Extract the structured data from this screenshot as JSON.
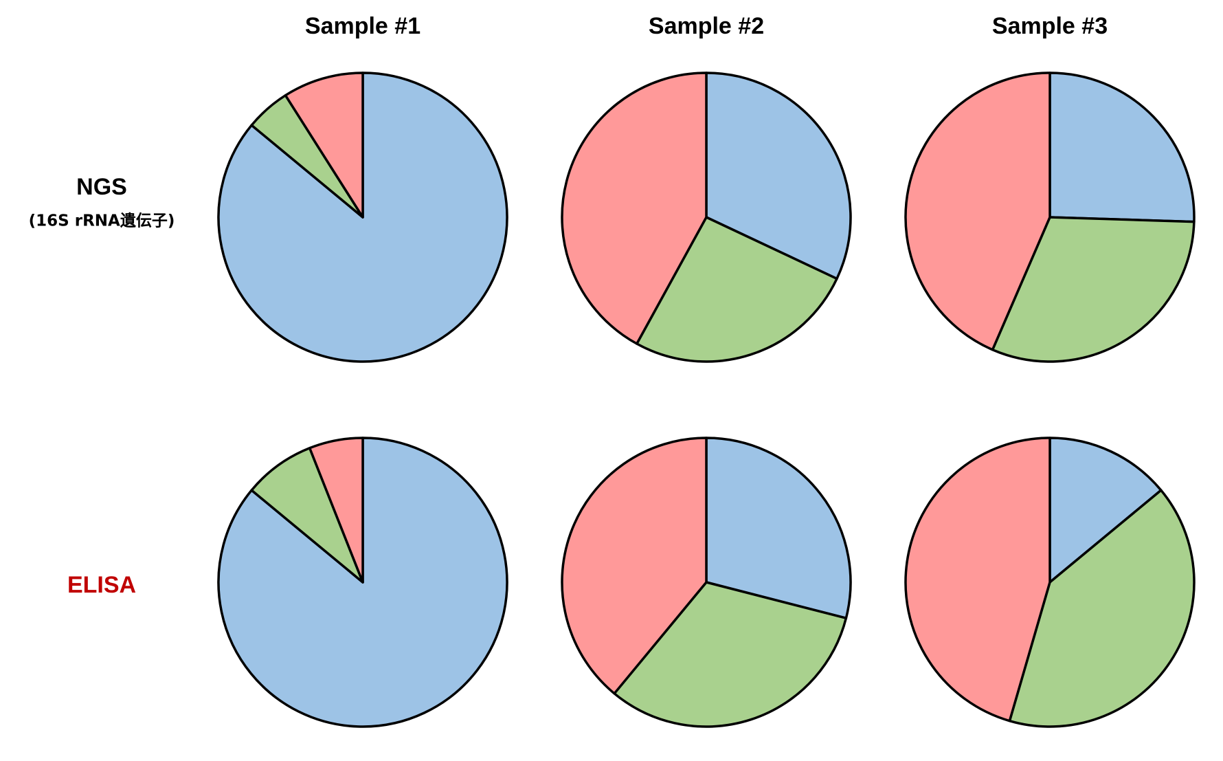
{
  "columns": [
    "Sample #1",
    "Sample #2",
    "Sample #3"
  ],
  "rows": [
    {
      "label": "NGS",
      "sublabel": "(16S rRNA遺伝子)"
    },
    {
      "label": "ELISA"
    }
  ],
  "chart_data": [
    {
      "type": "pie",
      "values": [
        86,
        5,
        9
      ],
      "colors": [
        "#9dc3e6",
        "#a9d18e",
        "#ff9999"
      ]
    },
    {
      "type": "pie",
      "values": [
        32,
        26,
        42
      ],
      "colors": [
        "#9dc3e6",
        "#a9d18e",
        "#ff9999"
      ]
    },
    {
      "type": "pie",
      "values": [
        25.5,
        31,
        43.5
      ],
      "colors": [
        "#9dc3e6",
        "#a9d18e",
        "#ff9999"
      ]
    },
    {
      "type": "pie",
      "values": [
        86,
        8,
        6
      ],
      "colors": [
        "#9dc3e6",
        "#a9d18e",
        "#ff9999"
      ]
    },
    {
      "type": "pie",
      "values": [
        29,
        32,
        39
      ],
      "colors": [
        "#9dc3e6",
        "#a9d18e",
        "#ff9999"
      ]
    },
    {
      "type": "pie",
      "values": [
        14,
        40.5,
        45.5
      ],
      "colors": [
        "#9dc3e6",
        "#a9d18e",
        "#ff9999"
      ]
    }
  ]
}
